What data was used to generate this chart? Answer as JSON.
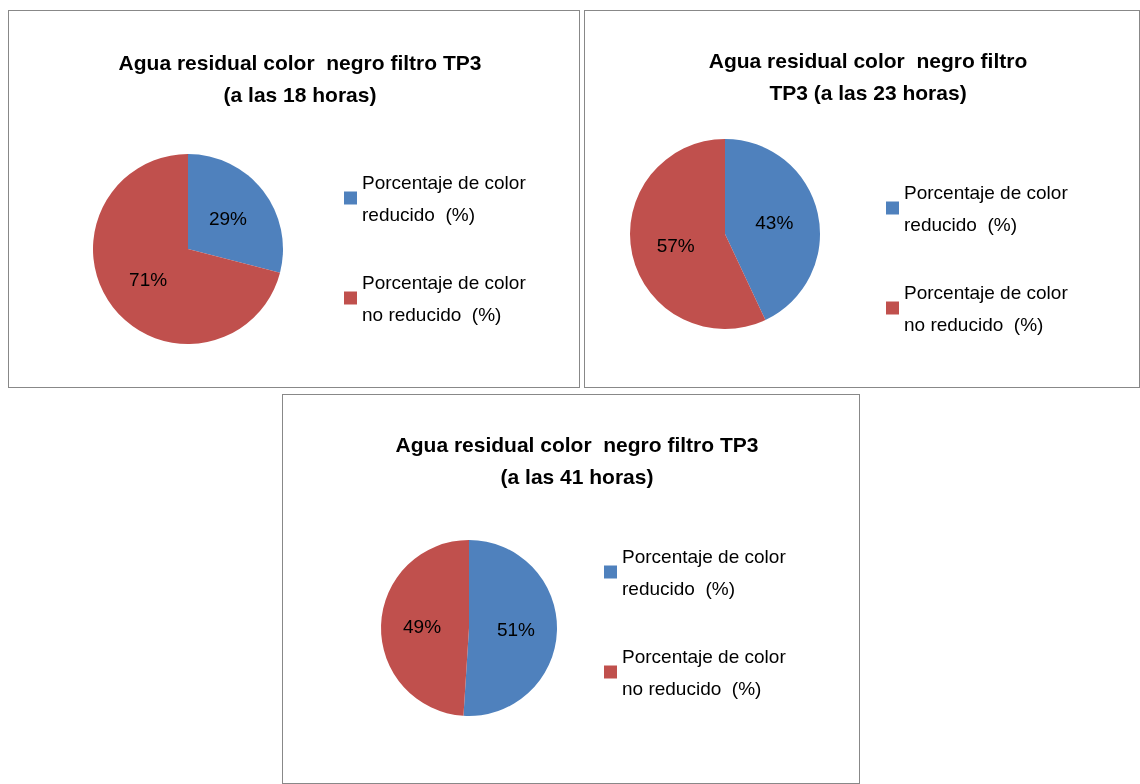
{
  "chart_data": [
    {
      "type": "pie",
      "title": "Agua residual color  negro filtro TP3\n(a las 18 horas)",
      "categories": [
        "Porcentaje de color reducido  (%)",
        "Porcentaje de color no reducido  (%)"
      ],
      "values": [
        29,
        71
      ],
      "value_labels": [
        "29%",
        "71%"
      ],
      "colors": [
        "#4f81bd",
        "#c0504d"
      ],
      "legend": "right"
    },
    {
      "type": "pie",
      "title": "Agua residual color  negro filtro\nTP3 (a las 23 horas)",
      "categories": [
        "Porcentaje de color reducido  (%)",
        "Porcentaje de color no reducido  (%)"
      ],
      "values": [
        43,
        57
      ],
      "value_labels": [
        "43%",
        "57%"
      ],
      "colors": [
        "#4f81bd",
        "#c0504d"
      ],
      "legend": "right"
    },
    {
      "type": "pie",
      "title": "Agua residual color  negro filtro TP3\n(a las 41 horas)",
      "categories": [
        "Porcentaje de color reducido  (%)",
        "Porcentaje de color no reducido  (%)"
      ],
      "values": [
        51,
        49
      ],
      "value_labels": [
        "51%",
        "49%"
      ],
      "colors": [
        "#4f81bd",
        "#c0504d"
      ],
      "legend": "right"
    }
  ]
}
